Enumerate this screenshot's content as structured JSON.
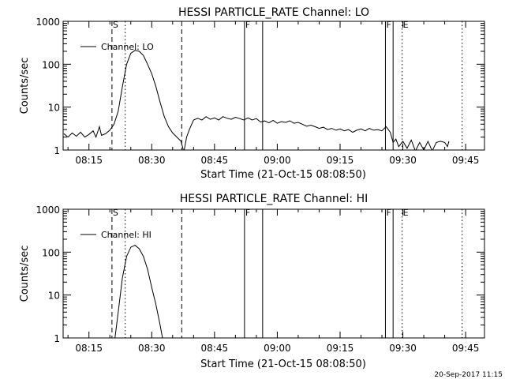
{
  "footer": {
    "timestamp": "20-Sep-2017 11:15"
  },
  "chart_data": [
    {
      "type": "line",
      "title": "HESSI PARTICLE_RATE Channel: LO",
      "xlabel": "Start Time (21-Oct-15 08:08:50)",
      "ylabel": "Counts/sec",
      "yscale": "log",
      "ylim": [
        1,
        1000
      ],
      "xlim": [
        "08:08:50",
        "09:49:30"
      ],
      "x_ticks": [
        "08:15",
        "08:30",
        "08:45",
        "09:00",
        "09:15",
        "09:30",
        "09:45"
      ],
      "y_ticks": [
        "1",
        "10",
        "100",
        "1000"
      ],
      "legend": {
        "entries": [
          "Channel: LO"
        ],
        "position": "top-left"
      },
      "series": [
        {
          "name": "Channel: LO",
          "points": [
            [
              "08:09:00",
              2.4
            ],
            [
              "08:10:00",
              2.0
            ],
            [
              "08:11:00",
              2.5
            ],
            [
              "08:12:00",
              2.1
            ],
            [
              "08:13:00",
              2.6
            ],
            [
              "08:14:00",
              2.0
            ],
            [
              "08:15:00",
              2.3
            ],
            [
              "08:16:00",
              2.8
            ],
            [
              "08:16:40",
              2.0
            ],
            [
              "08:17:30",
              3.5
            ],
            [
              "08:18:00",
              2.2
            ],
            [
              "08:19:00",
              2.4
            ],
            [
              "08:20:00",
              2.9
            ],
            [
              "08:21:00",
              4.0
            ],
            [
              "08:22:00",
              8.0
            ],
            [
              "08:23:00",
              30
            ],
            [
              "08:24:00",
              100
            ],
            [
              "08:25:00",
              180
            ],
            [
              "08:26:00",
              210
            ],
            [
              "08:27:00",
              200
            ],
            [
              "08:28:00",
              160
            ],
            [
              "08:29:00",
              100
            ],
            [
              "08:30:00",
              60
            ],
            [
              "08:31:00",
              30
            ],
            [
              "08:32:00",
              13
            ],
            [
              "08:33:00",
              6.0
            ],
            [
              "08:34:00",
              3.5
            ],
            [
              "08:35:00",
              2.5
            ],
            [
              "08:36:00",
              2.0
            ],
            [
              "08:37:00",
              1.6
            ],
            [
              "08:37:40",
              0.9
            ],
            [
              "08:38:20",
              2.0
            ],
            [
              "08:39:00",
              3.0
            ],
            [
              "08:40:00",
              5.0
            ],
            [
              "08:41:00",
              5.5
            ],
            [
              "08:42:00",
              5.0
            ],
            [
              "08:43:00",
              6.0
            ],
            [
              "08:44:00",
              5.2
            ],
            [
              "08:45:00",
              5.6
            ],
            [
              "08:46:00",
              5.0
            ],
            [
              "08:47:00",
              6.0
            ],
            [
              "08:48:00",
              5.5
            ],
            [
              "08:49:00",
              5.2
            ],
            [
              "08:50:00",
              5.8
            ],
            [
              "08:51:00",
              5.4
            ],
            [
              "08:52:00",
              5.0
            ],
            [
              "08:53:00",
              5.6
            ],
            [
              "08:54:00",
              5.0
            ],
            [
              "08:55:00",
              5.4
            ],
            [
              "08:56:00",
              4.5
            ],
            [
              "08:57:00",
              4.8
            ],
            [
              "08:58:00",
              4.3
            ],
            [
              "08:59:00",
              4.9
            ],
            [
              "09:00:00",
              4.2
            ],
            [
              "09:01:00",
              4.6
            ],
            [
              "09:02:00",
              4.4
            ],
            [
              "09:03:00",
              4.8
            ],
            [
              "09:04:00",
              4.2
            ],
            [
              "09:05:00",
              4.4
            ],
            [
              "09:06:00",
              4.0
            ],
            [
              "09:07:00",
              3.6
            ],
            [
              "09:08:00",
              3.8
            ],
            [
              "09:09:00",
              3.5
            ],
            [
              "09:10:00",
              3.2
            ],
            [
              "09:11:00",
              3.4
            ],
            [
              "09:12:00",
              3.0
            ],
            [
              "09:13:00",
              3.2
            ],
            [
              "09:14:00",
              2.9
            ],
            [
              "09:15:00",
              3.1
            ],
            [
              "09:16:00",
              2.8
            ],
            [
              "09:17:00",
              3.0
            ],
            [
              "09:18:00",
              2.6
            ],
            [
              "09:19:00",
              2.9
            ],
            [
              "09:20:00",
              3.1
            ],
            [
              "09:21:00",
              2.8
            ],
            [
              "09:22:00",
              3.2
            ],
            [
              "09:23:00",
              2.9
            ],
            [
              "09:24:00",
              3.0
            ],
            [
              "09:25:00",
              2.8
            ],
            [
              "09:26:00",
              3.5
            ],
            [
              "09:27:00",
              2.6
            ],
            [
              "09:27:40",
              1.5
            ],
            [
              "09:28:20",
              1.8
            ],
            [
              "09:29:00",
              1.2
            ],
            [
              "09:30:00",
              1.6
            ],
            [
              "09:31:00",
              1.1
            ],
            [
              "09:32:00",
              1.7
            ],
            [
              "09:33:00",
              0.95
            ],
            [
              "09:34:00",
              1.5
            ],
            [
              "09:35:00",
              1.0
            ],
            [
              "09:36:00",
              1.6
            ],
            [
              "09:37:00",
              0.95
            ],
            [
              "09:38:00",
              1.5
            ],
            [
              "09:39:00",
              1.6
            ],
            [
              "09:40:00",
              1.5
            ],
            [
              "09:40:40",
              1.2
            ],
            [
              "09:41:00",
              1.6
            ]
          ]
        }
      ],
      "markers": [
        {
          "time": "08:20:30",
          "style": "dashed",
          "label": "S"
        },
        {
          "time": "08:23:40",
          "style": "dotted",
          "label": ""
        },
        {
          "time": "08:37:10",
          "style": "dashed",
          "label": ""
        },
        {
          "time": "08:52:10",
          "style": "solid",
          "label": "F"
        },
        {
          "time": "08:56:30",
          "style": "solid",
          "label": ""
        },
        {
          "time": "09:25:50",
          "style": "solid",
          "label": "F"
        },
        {
          "time": "09:27:40",
          "style": "solid",
          "label": ""
        },
        {
          "time": "09:29:50",
          "style": "dotted",
          "label": "E"
        },
        {
          "time": "09:44:10",
          "style": "dotted",
          "label": ""
        }
      ],
      "grid": false
    },
    {
      "type": "line",
      "title": "HESSI PARTICLE_RATE Channel: HI",
      "xlabel": "Start Time (21-Oct-15 08:08:50)",
      "ylabel": "Counts/sec",
      "yscale": "log",
      "ylim": [
        1,
        1000
      ],
      "xlim": [
        "08:08:50",
        "09:49:30"
      ],
      "x_ticks": [
        "08:15",
        "08:30",
        "08:45",
        "09:00",
        "09:15",
        "09:30",
        "09:45"
      ],
      "y_ticks": [
        "1",
        "10",
        "100",
        "1000"
      ],
      "legend": {
        "entries": [
          "Channel: HI"
        ],
        "position": "top-left"
      },
      "series": [
        {
          "name": "Channel: HI",
          "points": [
            [
              "08:21:10",
              0.9
            ],
            [
              "08:22:00",
              4.0
            ],
            [
              "08:23:00",
              25
            ],
            [
              "08:24:00",
              80
            ],
            [
              "08:25:00",
              130
            ],
            [
              "08:26:00",
              145
            ],
            [
              "08:27:00",
              120
            ],
            [
              "08:28:00",
              80
            ],
            [
              "08:29:00",
              40
            ],
            [
              "08:30:00",
              15
            ],
            [
              "08:31:00",
              6.0
            ],
            [
              "08:32:00",
              2.0
            ],
            [
              "08:32:40",
              0.9
            ]
          ]
        }
      ],
      "markers": [
        {
          "time": "08:20:30",
          "style": "dashed",
          "label": "S"
        },
        {
          "time": "08:23:40",
          "style": "dotted",
          "label": ""
        },
        {
          "time": "08:37:10",
          "style": "dashed",
          "label": ""
        },
        {
          "time": "08:52:10",
          "style": "solid",
          "label": "F"
        },
        {
          "time": "08:56:30",
          "style": "solid",
          "label": ""
        },
        {
          "time": "09:25:50",
          "style": "solid",
          "label": "F"
        },
        {
          "time": "09:27:40",
          "style": "solid",
          "label": ""
        },
        {
          "time": "09:29:50",
          "style": "dotted",
          "label": "E"
        },
        {
          "time": "09:44:10",
          "style": "dotted",
          "label": ""
        }
      ],
      "grid": false
    }
  ]
}
